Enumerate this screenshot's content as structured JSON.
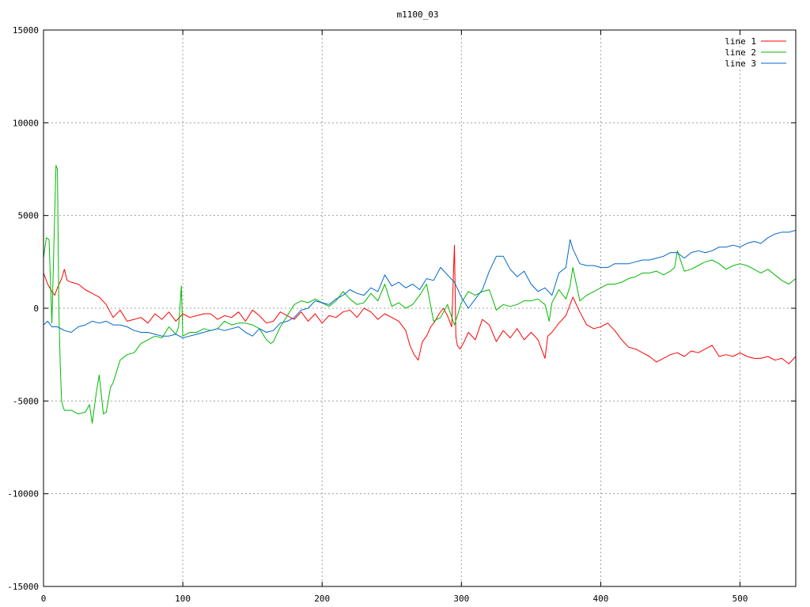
{
  "chart_data": {
    "type": "line",
    "title": "m1100_03",
    "xlabel": "",
    "ylabel": "",
    "xlim": [
      0,
      540
    ],
    "ylim": [
      -15000,
      15000
    ],
    "x_ticks": [
      "0",
      "100",
      "200",
      "300",
      "400",
      "500"
    ],
    "y_ticks": [
      "-15000",
      "-10000",
      "-5000",
      "0",
      "5000",
      "10000",
      "15000"
    ],
    "grid": true,
    "legend_position": "top-right",
    "series": [
      {
        "name": "line 1",
        "color": "#ff0000",
        "x": [
          0,
          3,
          6,
          8,
          10,
          13,
          15,
          17,
          20,
          25,
          30,
          35,
          40,
          45,
          50,
          55,
          60,
          65,
          70,
          75,
          80,
          85,
          90,
          95,
          100,
          105,
          110,
          115,
          120,
          125,
          130,
          135,
          140,
          145,
          150,
          155,
          160,
          165,
          170,
          175,
          180,
          185,
          190,
          195,
          200,
          205,
          210,
          215,
          220,
          225,
          230,
          235,
          240,
          245,
          250,
          255,
          260,
          263,
          266,
          269,
          272,
          275,
          278,
          281,
          284,
          287,
          290,
          293,
          295,
          296,
          297,
          299,
          302,
          305,
          310,
          315,
          320,
          325,
          330,
          335,
          340,
          345,
          350,
          355,
          360,
          362,
          365,
          370,
          375,
          378,
          380,
          385,
          390,
          395,
          400,
          405,
          410,
          415,
          420,
          425,
          430,
          435,
          440,
          445,
          450,
          455,
          460,
          465,
          470,
          475,
          480,
          485,
          490,
          495,
          500,
          505,
          510,
          515,
          520,
          525,
          530,
          535,
          540
        ],
        "values": [
          1900,
          1300,
          900,
          700,
          1100,
          1600,
          2100,
          1500,
          1400,
          1300,
          1000,
          800,
          600,
          200,
          -500,
          -100,
          -700,
          -600,
          -500,
          -800,
          -300,
          -600,
          -200,
          -700,
          -300,
          -500,
          -400,
          -300,
          -300,
          -600,
          -400,
          -500,
          -200,
          -700,
          -100,
          -400,
          -800,
          -700,
          -200,
          -400,
          -600,
          -200,
          -700,
          -300,
          -800,
          -400,
          -500,
          -200,
          -100,
          -500,
          0,
          -200,
          -600,
          -300,
          -500,
          -700,
          -1200,
          -2000,
          -2500,
          -2800,
          -1800,
          -1500,
          -1000,
          -700,
          -300,
          0,
          -400,
          -1000,
          3400,
          -1500,
          -2000,
          -2200,
          -1800,
          -1300,
          -1700,
          -600,
          -900,
          -1800,
          -1200,
          -1600,
          -1100,
          -1700,
          -1300,
          -1700,
          -2700,
          -1500,
          -1300,
          -800,
          -400,
          200,
          600,
          -200,
          -900,
          -1100,
          -1000,
          -800,
          -1200,
          -1700,
          -2100,
          -2200,
          -2400,
          -2600,
          -2900,
          -2700,
          -2500,
          -2400,
          -2600,
          -2300,
          -2400,
          -2200,
          -2000,
          -2600,
          -2500,
          -2600,
          -2400,
          -2600,
          -2700,
          -2700,
          -2600,
          -2800,
          -2700,
          -3000,
          -2600
        ]
      },
      {
        "name": "line 2",
        "color": "#00bb00",
        "x": [
          0,
          2,
          4,
          6,
          7,
          8,
          9,
          10,
          11,
          12,
          13,
          14,
          15,
          20,
          25,
          30,
          33,
          35,
          38,
          40,
          43,
          45,
          48,
          50,
          55,
          60,
          65,
          70,
          75,
          80,
          85,
          90,
          95,
          97,
          99,
          100,
          105,
          110,
          115,
          120,
          125,
          130,
          135,
          140,
          145,
          150,
          155,
          160,
          163,
          165,
          170,
          175,
          180,
          185,
          190,
          195,
          200,
          205,
          210,
          215,
          220,
          225,
          230,
          235,
          240,
          245,
          250,
          255,
          260,
          265,
          270,
          275,
          280,
          285,
          290,
          295,
          300,
          305,
          310,
          315,
          320,
          325,
          330,
          335,
          340,
          345,
          350,
          355,
          360,
          363,
          365,
          370,
          375,
          378,
          380,
          385,
          390,
          395,
          400,
          405,
          410,
          415,
          420,
          425,
          430,
          435,
          440,
          445,
          450,
          453,
          455,
          460,
          465,
          470,
          475,
          480,
          485,
          490,
          495,
          500,
          505,
          510,
          515,
          520,
          525,
          530,
          535,
          540
        ],
        "values": [
          2700,
          3800,
          3700,
          -800,
          2000,
          5000,
          7700,
          7500,
          0,
          -3000,
          -5000,
          -5300,
          -5500,
          -5500,
          -5700,
          -5600,
          -5200,
          -6200,
          -4500,
          -3600,
          -5700,
          -5600,
          -4300,
          -4000,
          -2800,
          -2500,
          -2400,
          -1900,
          -1700,
          -1500,
          -1600,
          -1000,
          -1400,
          -1000,
          1200,
          -1500,
          -1300,
          -1300,
          -1100,
          -1200,
          -1100,
          -700,
          -900,
          -800,
          -800,
          -900,
          -1100,
          -1700,
          -1900,
          -1800,
          -1000,
          -400,
          200,
          400,
          300,
          500,
          300,
          100,
          400,
          900,
          500,
          200,
          300,
          800,
          400,
          1300,
          100,
          300,
          0,
          200,
          700,
          1300,
          -700,
          -500,
          200,
          -900,
          300,
          900,
          700,
          900,
          1000,
          -100,
          200,
          100,
          200,
          400,
          400,
          500,
          200,
          -700,
          300,
          1000,
          500,
          1200,
          2200,
          400,
          700,
          900,
          1100,
          1300,
          1300,
          1400,
          1600,
          1700,
          1900,
          1900,
          2000,
          1800,
          2000,
          2200,
          3100,
          2000,
          2100,
          2300,
          2500,
          2600,
          2400,
          2100,
          2300,
          2400,
          2300,
          2100,
          1900,
          2100,
          1800,
          1500,
          1300,
          1600
        ]
      },
      {
        "name": "line 3",
        "color": "#0066cc",
        "x": [
          0,
          3,
          6,
          10,
          15,
          20,
          25,
          30,
          35,
          40,
          45,
          50,
          55,
          60,
          65,
          70,
          75,
          80,
          85,
          90,
          95,
          100,
          105,
          110,
          115,
          120,
          125,
          130,
          135,
          140,
          145,
          150,
          155,
          160,
          165,
          170,
          175,
          180,
          185,
          190,
          195,
          200,
          205,
          210,
          215,
          220,
          225,
          230,
          235,
          240,
          245,
          250,
          255,
          260,
          265,
          270,
          275,
          280,
          285,
          290,
          295,
          300,
          305,
          310,
          315,
          320,
          325,
          330,
          335,
          340,
          345,
          350,
          355,
          360,
          365,
          370,
          375,
          378,
          380,
          385,
          390,
          395,
          400,
          405,
          410,
          415,
          420,
          425,
          430,
          435,
          440,
          445,
          450,
          455,
          460,
          465,
          470,
          475,
          480,
          485,
          490,
          495,
          500,
          505,
          510,
          515,
          520,
          525,
          530,
          535,
          540
        ],
        "values": [
          -900,
          -700,
          -1000,
          -1000,
          -1200,
          -1300,
          -1000,
          -900,
          -700,
          -800,
          -700,
          -900,
          -900,
          -1000,
          -1200,
          -1300,
          -1300,
          -1400,
          -1500,
          -1500,
          -1400,
          -1600,
          -1500,
          -1400,
          -1300,
          -1200,
          -1100,
          -1200,
          -1100,
          -1000,
          -1300,
          -1500,
          -1100,
          -1300,
          -1200,
          -800,
          -700,
          -500,
          -100,
          0,
          400,
          300,
          200,
          500,
          700,
          1000,
          800,
          700,
          1100,
          900,
          1800,
          1200,
          1400,
          1100,
          1300,
          1000,
          1600,
          1500,
          2200,
          1800,
          1400,
          600,
          0,
          500,
          1000,
          2000,
          2800,
          2800,
          2100,
          1700,
          2000,
          1300,
          900,
          1100,
          700,
          1900,
          2200,
          3700,
          3200,
          2400,
          2300,
          2300,
          2200,
          2200,
          2400,
          2400,
          2400,
          2500,
          2600,
          2600,
          2700,
          2800,
          3000,
          3000,
          2700,
          3000,
          3100,
          3000,
          3100,
          3300,
          3300,
          3400,
          3300,
          3500,
          3600,
          3500,
          3800,
          4000,
          4100,
          4100,
          4200
        ]
      }
    ]
  }
}
